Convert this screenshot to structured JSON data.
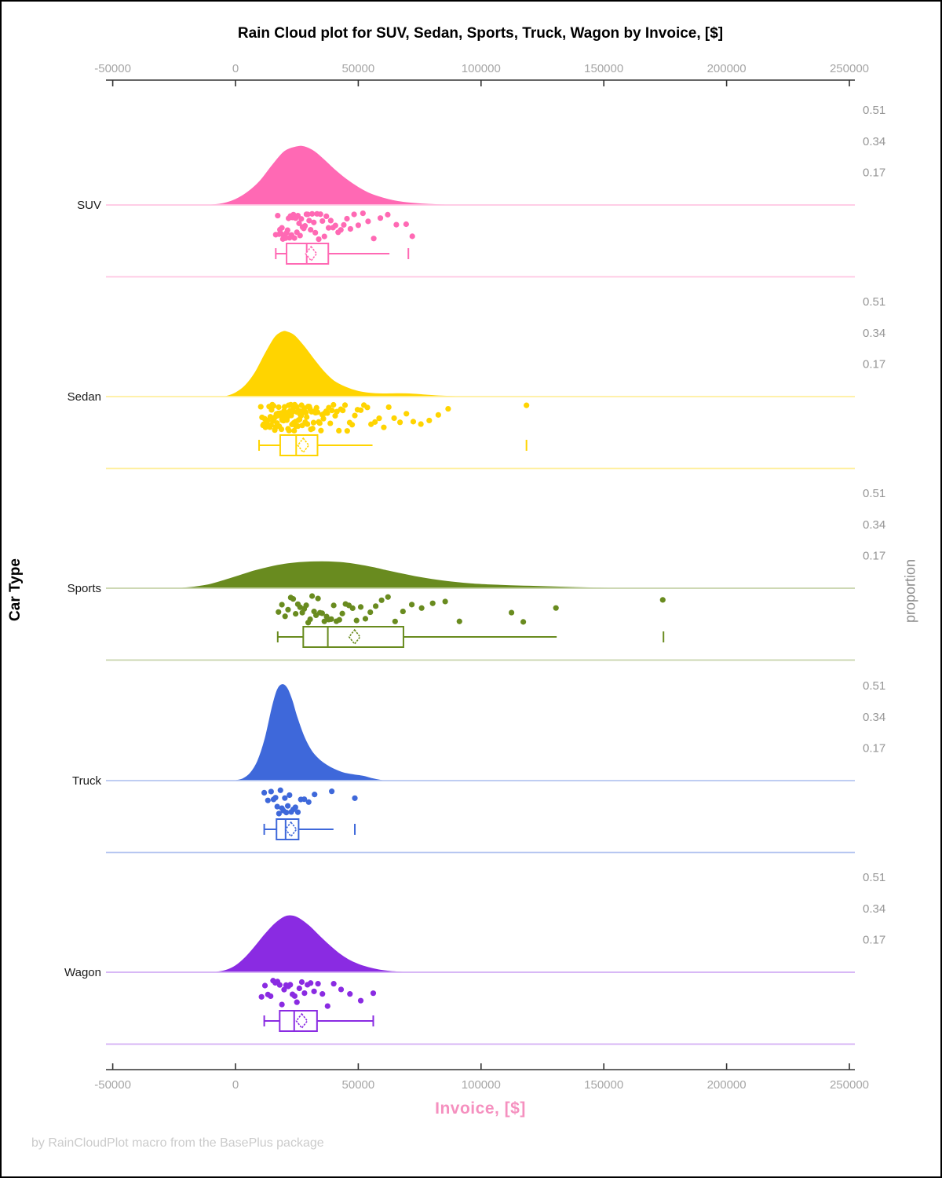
{
  "chart_data": {
    "type": "raincloud",
    "title": "Rain Cloud plot for SUV, Sedan, Sports, Truck, Wagon by Invoice, [$]",
    "xlabel": "Invoice, [$]",
    "ylabel": "Car Type",
    "ylabel_right": "proportion",
    "footer": "by RainCloudPlot macro from the BasePlus package",
    "xlim": [
      -50000,
      250000
    ],
    "x_ticks": [
      -50000,
      0,
      50000,
      100000,
      150000,
      200000,
      250000
    ],
    "x_tick_labels": [
      "-50000",
      "0",
      "50000",
      "100000",
      "150000",
      "200000",
      "250000"
    ],
    "proportion_tick_labels": [
      "0.51",
      "0.34",
      "0.17"
    ],
    "proportion_tick_values": [
      0.51,
      0.34,
      0.17
    ],
    "grid": false,
    "legend": "none",
    "categories": [
      "SUV",
      "Sedan",
      "Sports",
      "Truck",
      "Wagon"
    ],
    "groups": [
      {
        "name": "SUV",
        "color": "#FF69B4",
        "density": {
          "x": [
            -10000,
            -5000,
            0,
            5000,
            10000,
            15000,
            20000,
            25000,
            28000,
            32000,
            36000,
            40000,
            45000,
            50000,
            55000,
            60000,
            65000,
            70000,
            78000,
            86000
          ],
          "h": [
            0,
            0.008,
            0.03,
            0.07,
            0.13,
            0.215,
            0.29,
            0.315,
            0.315,
            0.29,
            0.245,
            0.195,
            0.14,
            0.095,
            0.06,
            0.038,
            0.022,
            0.012,
            0.004,
            0
          ]
        },
        "box": {
          "whisker_low": 16400,
          "q1": 20800,
          "median": 29000,
          "q3": 37800,
          "whisker_high": 62700,
          "mean": 30800,
          "outliers": [
            70400
          ],
          "cap_high": false
        },
        "points_x": [
          16400,
          17200,
          17800,
          18100,
          18500,
          18900,
          19300,
          19700,
          20100,
          20400,
          20800,
          21200,
          21600,
          22000,
          22400,
          22800,
          23200,
          23600,
          24000,
          24500,
          25000,
          25400,
          25900,
          26300,
          26800,
          27300,
          27800,
          28300,
          28900,
          29400,
          30000,
          30600,
          31200,
          31900,
          32500,
          33200,
          33900,
          34600,
          35400,
          36200,
          37000,
          37900,
          38800,
          39700,
          40700,
          41800,
          42900,
          44100,
          45400,
          46800,
          48300,
          50000,
          51900,
          54000,
          56300,
          59000,
          62000,
          65500,
          69500,
          72000
        ]
      },
      {
        "name": "Sedan",
        "color": "#FFD400",
        "density": {
          "x": [
            -4000,
            0,
            4000,
            8000,
            12000,
            16000,
            19000,
            21000,
            24000,
            28000,
            32000,
            36000,
            40000,
            45000,
            50000,
            55000,
            60000,
            66000,
            72000,
            78000,
            84000,
            90000
          ],
          "h": [
            0,
            0.02,
            0.06,
            0.13,
            0.23,
            0.32,
            0.35,
            0.35,
            0.33,
            0.27,
            0.2,
            0.135,
            0.085,
            0.05,
            0.028,
            0.018,
            0.015,
            0.016,
            0.014,
            0.008,
            0.003,
            0
          ]
        },
        "box": {
          "whisker_low": 9600,
          "q1": 18200,
          "median": 24700,
          "q3": 33400,
          "whisker_high": 55800,
          "mean": 27600,
          "outliers": [
            118500
          ],
          "cap_high": false
        },
        "points_x": [
          10300,
          10800,
          11200,
          11500,
          11900,
          12200,
          12500,
          12800,
          13100,
          13400,
          13700,
          14000,
          14200,
          14500,
          14700,
          15000,
          15200,
          15500,
          15700,
          16000,
          16200,
          16400,
          16700,
          16900,
          17100,
          17400,
          17600,
          17800,
          18000,
          18300,
          18500,
          18700,
          18900,
          19100,
          19400,
          19600,
          19800,
          20000,
          20200,
          20500,
          20700,
          20900,
          21100,
          21400,
          21600,
          21800,
          22000,
          22300,
          22500,
          22700,
          23000,
          23200,
          23400,
          23700,
          23900,
          24100,
          24400,
          24600,
          24900,
          25100,
          25400,
          25600,
          25900,
          26100,
          26400,
          26700,
          26900,
          27200,
          27500,
          27800,
          28100,
          28400,
          28700,
          29000,
          29300,
          29600,
          30000,
          30300,
          30700,
          31000,
          31400,
          31800,
          32200,
          32600,
          33000,
          33400,
          33900,
          34300,
          34800,
          35300,
          35800,
          36300,
          36900,
          37400,
          38000,
          38600,
          39300,
          39900,
          40600,
          41300,
          42100,
          42900,
          43700,
          44600,
          45500,
          46500,
          47500,
          48600,
          49700,
          51000,
          52300,
          53700,
          55200,
          56800,
          58500,
          60400,
          62400,
          64600,
          67000,
          69600,
          72400,
          75500,
          78900,
          82600,
          86600,
          118500
        ]
      },
      {
        "name": "Sports",
        "color": "#698B1F",
        "density": {
          "x": [
            -22000,
            -16000,
            -10000,
            -4000,
            2000,
            8000,
            14000,
            20000,
            26000,
            32000,
            38000,
            44000,
            50000,
            56000,
            62000,
            68000,
            74000,
            80000,
            88000,
            96000,
            104000,
            112000,
            120000,
            128000,
            136000,
            144000,
            152000
          ],
          "h": [
            0,
            0.008,
            0.022,
            0.045,
            0.07,
            0.095,
            0.115,
            0.13,
            0.139,
            0.143,
            0.143,
            0.138,
            0.127,
            0.112,
            0.094,
            0.077,
            0.061,
            0.048,
            0.034,
            0.024,
            0.018,
            0.014,
            0.011,
            0.008,
            0.005,
            0.002,
            0
          ]
        },
        "box": {
          "whisker_low": 17200,
          "q1": 27600,
          "median": 37600,
          "q3": 68400,
          "whisker_high": 130800,
          "mean": 48500,
          "outliers": [
            174300
          ],
          "cap_high": false
        },
        "points_x": [
          17500,
          18900,
          20200,
          21400,
          22500,
          23500,
          24500,
          25400,
          26300,
          27200,
          28000,
          28800,
          29600,
          30400,
          31200,
          32000,
          32800,
          33600,
          34400,
          35300,
          36200,
          37100,
          38000,
          39000,
          40000,
          41100,
          42300,
          43500,
          44800,
          46200,
          47700,
          49300,
          51000,
          52900,
          54900,
          57100,
          59500,
          62100,
          65000,
          68200,
          71800,
          75800,
          80300,
          85400,
          91200,
          112400,
          117200,
          130500,
          174000
        ]
      },
      {
        "name": "Truck",
        "color": "#3E68DA",
        "density": {
          "x": [
            0,
            3000,
            6000,
            9000,
            12000,
            15000,
            17000,
            19000,
            21000,
            23000,
            25000,
            28000,
            31000,
            34000,
            37000,
            40000,
            44000,
            48000,
            52000,
            56000,
            60000
          ],
          "h": [
            0,
            0.01,
            0.04,
            0.105,
            0.225,
            0.4,
            0.49,
            0.52,
            0.5,
            0.435,
            0.345,
            0.235,
            0.16,
            0.115,
            0.085,
            0.063,
            0.042,
            0.032,
            0.024,
            0.01,
            0
          ]
        },
        "box": {
          "whisker_low": 11700,
          "q1": 16700,
          "median": 20400,
          "q3": 25700,
          "whisker_high": 39900,
          "mean": 22600,
          "outliers": [
            48600
          ],
          "cap_high": false
        },
        "points_x": [
          11700,
          13200,
          14500,
          15500,
          16300,
          17000,
          17700,
          18300,
          18900,
          19500,
          20100,
          20700,
          21300,
          22000,
          22700,
          23500,
          24400,
          25400,
          26600,
          28000,
          29800,
          32200,
          39200,
          48600
        ]
      },
      {
        "name": "Wagon",
        "color": "#8A2BE2",
        "density": {
          "x": [
            -8000,
            -4000,
            0,
            4000,
            8000,
            12000,
            16000,
            20000,
            23000,
            26000,
            30000,
            34000,
            38000,
            42000,
            46000,
            50000,
            54000,
            58000,
            63000,
            68000
          ],
          "h": [
            0,
            0.01,
            0.035,
            0.08,
            0.14,
            0.205,
            0.262,
            0.3,
            0.305,
            0.29,
            0.25,
            0.198,
            0.148,
            0.103,
            0.068,
            0.043,
            0.026,
            0.014,
            0.005,
            0
          ]
        },
        "box": {
          "whisker_low": 11700,
          "q1": 18000,
          "median": 23900,
          "q3": 33200,
          "whisker_high": 56100,
          "mean": 27000,
          "outliers": [],
          "cap_high": true
        },
        "points_x": [
          10600,
          12000,
          13200,
          14300,
          15300,
          16200,
          17100,
          18000,
          18900,
          19800,
          20600,
          21500,
          22300,
          23200,
          24100,
          25000,
          26000,
          27000,
          28100,
          29300,
          30600,
          32000,
          33600,
          35400,
          37500,
          40000,
          43000,
          46600,
          51000,
          56100
        ]
      }
    ],
    "colors": {
      "axis_line": "#333333",
      "tick_label": "#A6A6A6",
      "category_label": "#1A1A1A",
      "proportion_label": "#969696",
      "xlabel_pink": "#F590BF",
      "footer_gray": "#CBCBCB"
    }
  }
}
